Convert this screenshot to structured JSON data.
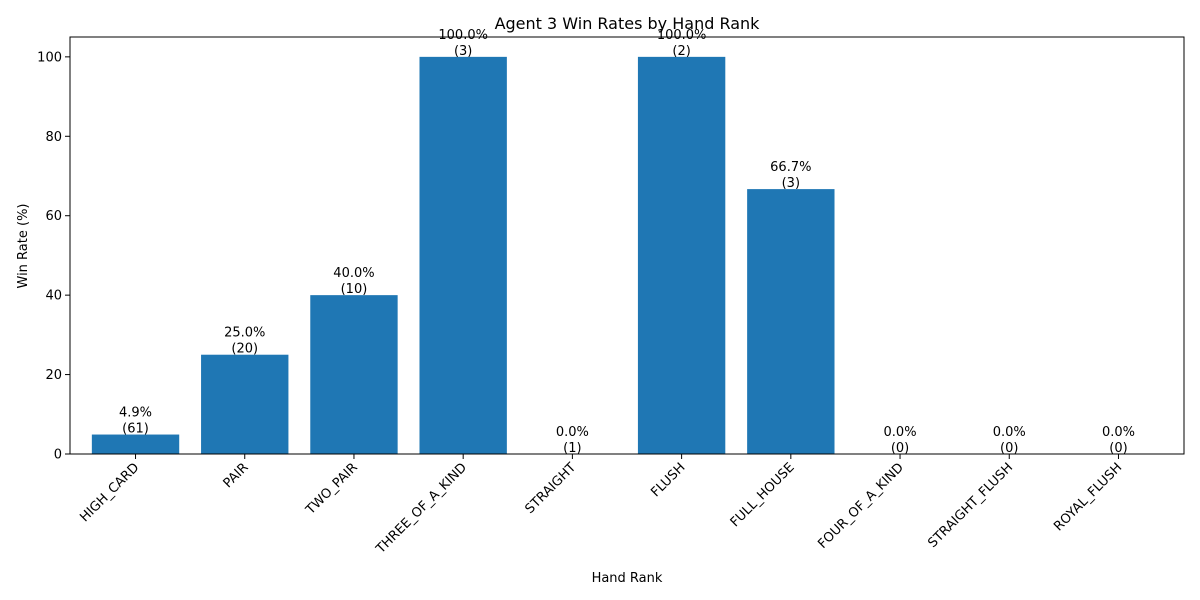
{
  "chart_data": {
    "type": "bar",
    "title": "Agent 3 Win Rates by Hand Rank",
    "xlabel": "Hand Rank",
    "ylabel": "Win Rate (%)",
    "ylim": [
      0,
      105
    ],
    "yticks": [
      0,
      20,
      40,
      60,
      80,
      100
    ],
    "grid": false,
    "bar_color": "#1f77b4",
    "categories": [
      "HIGH_CARD",
      "PAIR",
      "TWO_PAIR",
      "THREE_OF_A_KIND",
      "STRAIGHT",
      "FLUSH",
      "FULL_HOUSE",
      "FOUR_OF_A_KIND",
      "STRAIGHT_FLUSH",
      "ROYAL_FLUSH"
    ],
    "values": [
      4.9,
      25.0,
      40.0,
      100.0,
      0.0,
      100.0,
      66.7,
      0.0,
      0.0,
      0.0
    ],
    "counts": [
      61,
      20,
      10,
      3,
      1,
      2,
      3,
      0,
      0,
      0
    ],
    "data_labels": [
      [
        "4.9%",
        "(61)"
      ],
      [
        "25.0%",
        "(20)"
      ],
      [
        "40.0%",
        "(10)"
      ],
      [
        "100.0%",
        "(3)"
      ],
      [
        "0.0%",
        "(1)"
      ],
      [
        "100.0%",
        "(2)"
      ],
      [
        "66.7%",
        "(3)"
      ],
      [
        "0.0%",
        "(0)"
      ],
      [
        "0.0%",
        "(0)"
      ],
      [
        "0.0%",
        "(0)"
      ]
    ]
  }
}
